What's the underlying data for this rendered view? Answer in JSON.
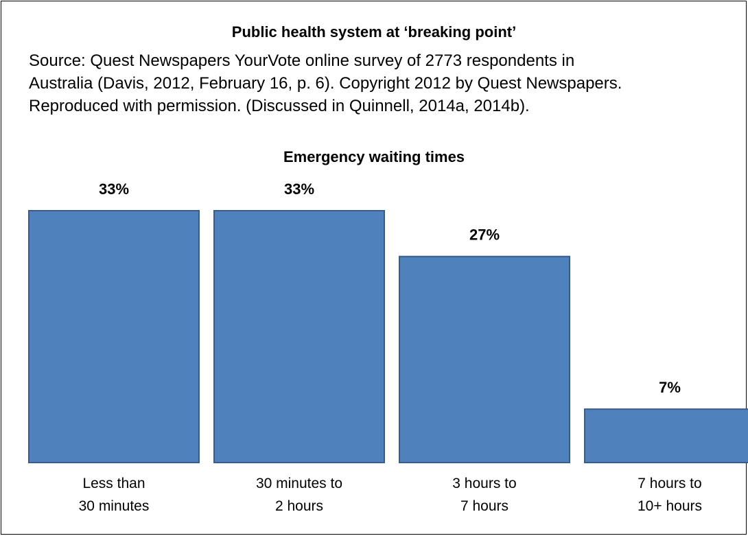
{
  "header": {
    "title": "Public health system at ‘breaking point’",
    "source_text": "Source: Quest Newspapers YourVote online survey of 2773 respondents in\nAustralia (Davis, 2012, February 16, p. 6). Copyright 2012 by Quest Newspapers.\nReproduced with permission. (Discussed in Quinnell, 2014a, 2014b)."
  },
  "chart_data": {
    "type": "bar",
    "title": "Emergency waiting times",
    "categories": [
      [
        "Less than",
        "30 minutes"
      ],
      [
        "30 minutes to",
        "2 hours"
      ],
      [
        "3 hours to",
        "7 hours"
      ],
      [
        "7 hours to",
        "10+ hours"
      ]
    ],
    "values": [
      33,
      33,
      27,
      7
    ],
    "value_labels": [
      "33%",
      "33%",
      "27%",
      "7%"
    ],
    "ylim": [
      0,
      33
    ],
    "grid": false,
    "bar_color": "#4f81bd",
    "bar_border_color": "#385d8a"
  }
}
